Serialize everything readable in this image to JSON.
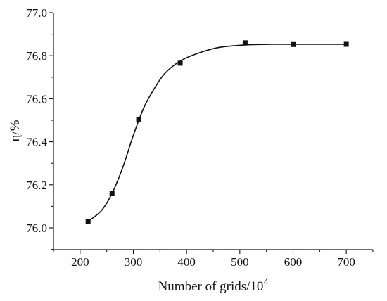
{
  "chart_data": {
    "type": "scatter",
    "xlabel": "Number of grids/10",
    "xlabel_superscript": "4",
    "ylabel": "η/%",
    "xlim": [
      150,
      750
    ],
    "ylim": [
      75.9,
      77.0
    ],
    "x_ticks": [
      200,
      300,
      400,
      500,
      600,
      700
    ],
    "y_ticks": [
      76.0,
      76.2,
      76.4,
      76.6,
      76.8,
      77.0
    ],
    "x_tick_labels": [
      "200",
      "300",
      "400",
      "500",
      "600",
      "700"
    ],
    "y_tick_labels": [
      "76.0",
      "76.2",
      "76.4",
      "76.6",
      "76.8",
      "77.0"
    ],
    "grid": false,
    "legend": "none",
    "series": [
      {
        "marker": "square",
        "color": "#111111",
        "points": [
          {
            "x": 215,
            "y": 76.03
          },
          {
            "x": 260,
            "y": 76.16
          },
          {
            "x": 310,
            "y": 76.505
          },
          {
            "x": 388,
            "y": 76.765
          },
          {
            "x": 510,
            "y": 76.86
          },
          {
            "x": 600,
            "y": 76.852
          },
          {
            "x": 700,
            "y": 76.853
          }
        ]
      }
    ],
    "fit_curve": {
      "type": "sigmoid",
      "color": "#111111",
      "x_range": [
        215,
        700
      ],
      "points": [
        {
          "x": 215,
          "y": 76.03
        },
        {
          "x": 240,
          "y": 76.08
        },
        {
          "x": 260,
          "y": 76.16
        },
        {
          "x": 280,
          "y": 76.28
        },
        {
          "x": 300,
          "y": 76.43
        },
        {
          "x": 320,
          "y": 76.56
        },
        {
          "x": 340,
          "y": 76.65
        },
        {
          "x": 360,
          "y": 76.72
        },
        {
          "x": 388,
          "y": 76.775
        },
        {
          "x": 420,
          "y": 76.81
        },
        {
          "x": 460,
          "y": 76.838
        },
        {
          "x": 510,
          "y": 76.85
        },
        {
          "x": 560,
          "y": 76.853
        },
        {
          "x": 600,
          "y": 76.853
        },
        {
          "x": 650,
          "y": 76.853
        },
        {
          "x": 700,
          "y": 76.853
        }
      ]
    }
  }
}
